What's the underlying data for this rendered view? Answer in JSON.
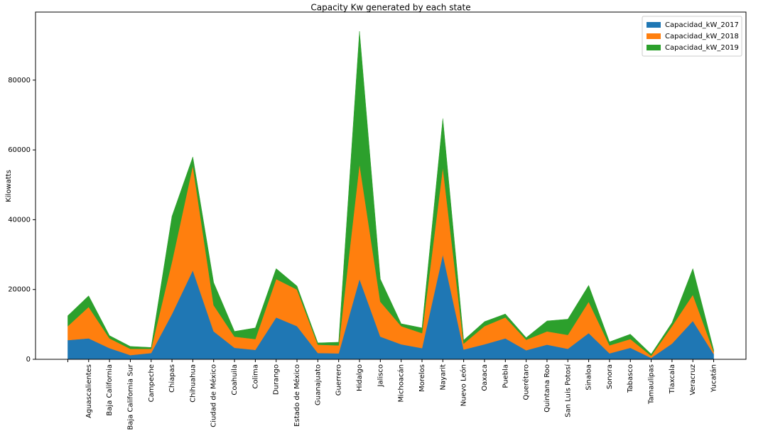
{
  "chart_data": {
    "type": "area",
    "stacked": true,
    "title": "Capacity Kw generated by each state",
    "ylabel": "Kilowatts",
    "categories": [
      null,
      "Aguascalientes",
      "Baja California",
      "Baja California Sur",
      "Campeche",
      "Chiapas",
      "Chihuahua",
      "Ciudad de México",
      "Coahuila",
      "Colima",
      "Durango",
      "Estado de México",
      "Guanajuato",
      "Guerrero",
      "Hidalgo",
      "Jalisco",
      "Michoacán",
      "Morelos",
      "Nayarit",
      "Nuevo León",
      "Oaxaca",
      "Puebla",
      "Querétaro",
      "Quintana Roo",
      "San Luis Potosí",
      "Sinaloa",
      "Sonora",
      "Tabasco",
      "Tamaulipas",
      "Tlaxcala",
      "Veracruz",
      "Yucatán"
    ],
    "series": [
      {
        "name": "Capacidad_kW_2017",
        "color": "#1f77b4",
        "values": [
          5500,
          6000,
          3200,
          1200,
          1800,
          13000,
          25500,
          8000,
          3300,
          2700,
          12000,
          9500,
          1800,
          1700,
          23000,
          6500,
          4300,
          3200,
          30000,
          2800,
          4300,
          6000,
          2600,
          4200,
          3000,
          7500,
          1700,
          3300,
          400,
          4500,
          11000,
          1500
        ]
      },
      {
        "name": "Capacidad_kW_2018",
        "color": "#ff7f0e",
        "values": [
          4000,
          9000,
          2800,
          1800,
          1200,
          15000,
          30000,
          7500,
          3200,
          3100,
          11000,
          10500,
          2400,
          2300,
          33000,
          10000,
          5200,
          4300,
          25000,
          1700,
          5200,
          6000,
          3000,
          3800,
          4000,
          9000,
          2300,
          2500,
          600,
          5000,
          7500,
          700
        ]
      },
      {
        "name": "Capacidad_kW_2019",
        "color": "#2ca02c",
        "values": [
          3000,
          3200,
          800,
          700,
          400,
          13000,
          2500,
          6500,
          1500,
          3200,
          3000,
          1000,
          500,
          900,
          38000,
          6500,
          700,
          1500,
          14000,
          1000,
          1300,
          1000,
          600,
          3000,
          4500,
          4700,
          1000,
          1400,
          500,
          1000,
          7500,
          500
        ]
      }
    ],
    "ylim": [
      0,
      99500
    ],
    "yticks": [
      0,
      20000,
      40000,
      60000,
      80000
    ],
    "legend": "upper right"
  }
}
